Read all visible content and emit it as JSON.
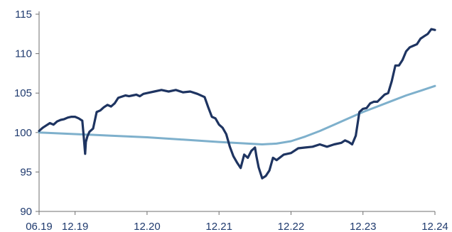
{
  "chart_data": {
    "type": "line",
    "title": "",
    "xlabel": "",
    "ylabel": "",
    "ylim": [
      90,
      115
    ],
    "yticks": [
      90,
      95,
      100,
      105,
      110,
      115
    ],
    "x_tick_labels": [
      "06.19",
      "12.19",
      "12.20",
      "12.21",
      "12.22",
      "12.23",
      "12.24"
    ],
    "x_tick_dates": [
      2019.5,
      2020.0,
      2021.0,
      2022.0,
      2023.0,
      2024.0,
      2025.0
    ],
    "xlim": [
      2019.5,
      2025.0
    ],
    "grid": false,
    "legend": "none",
    "series": [
      {
        "color": "#1e3461",
        "style": "solid",
        "x": [
          2019.5,
          2019.55,
          2019.6,
          2019.65,
          2019.7,
          2019.75,
          2019.8,
          2019.85,
          2019.9,
          2019.95,
          2020.0,
          2020.05,
          2020.1,
          2020.12,
          2020.14,
          2020.15,
          2020.17,
          2020.2,
          2020.25,
          2020.3,
          2020.35,
          2020.4,
          2020.45,
          2020.5,
          2020.55,
          2020.6,
          2020.7,
          2020.75,
          2020.8,
          2020.85,
          2020.9,
          2020.95,
          2021.0,
          2021.1,
          2021.2,
          2021.3,
          2021.4,
          2021.5,
          2021.6,
          2021.7,
          2021.8,
          2021.85,
          2021.9,
          2021.95,
          2022.0,
          2022.05,
          2022.1,
          2022.15,
          2022.2,
          2022.25,
          2022.3,
          2022.35,
          2022.4,
          2022.45,
          2022.5,
          2022.52,
          2022.55,
          2022.6,
          2022.65,
          2022.7,
          2022.75,
          2022.8,
          2022.9,
          2023.0,
          2023.1,
          2023.2,
          2023.3,
          2023.4,
          2023.5,
          2023.6,
          2023.7,
          2023.75,
          2023.8,
          2023.85,
          2023.9,
          2023.95,
          2024.0,
          2024.05,
          2024.1,
          2024.15,
          2024.2,
          2024.3,
          2024.35,
          2024.4,
          2024.45,
          2024.5,
          2024.55,
          2024.6,
          2024.65,
          2024.7,
          2024.75,
          2024.8,
          2024.85,
          2024.9,
          2024.95,
          2025.0
        ],
        "values": [
          100.2,
          100.6,
          100.9,
          101.2,
          101.0,
          101.4,
          101.6,
          101.7,
          101.9,
          102.0,
          102.0,
          101.8,
          101.5,
          99.5,
          97.3,
          98.8,
          99.5,
          100.1,
          100.5,
          102.6,
          102.8,
          103.2,
          103.5,
          103.3,
          103.7,
          104.4,
          104.7,
          104.6,
          104.7,
          104.8,
          104.6,
          104.9,
          105.0,
          105.2,
          105.4,
          105.2,
          105.4,
          105.1,
          105.2,
          104.9,
          104.5,
          103.2,
          102.0,
          101.8,
          101.0,
          100.6,
          99.8,
          98.2,
          97.0,
          96.2,
          95.5,
          97.2,
          96.8,
          97.7,
          98.1,
          97.0,
          95.6,
          94.2,
          94.5,
          95.2,
          96.8,
          96.5,
          97.2,
          97.4,
          98.0,
          98.1,
          98.2,
          98.5,
          98.2,
          98.5,
          98.7,
          99.0,
          98.8,
          98.5,
          99.6,
          102.6,
          103.0,
          103.1,
          103.7,
          103.9,
          103.9,
          104.8,
          105.0,
          106.5,
          108.5,
          108.5,
          109.2,
          110.3,
          110.8,
          111.0,
          111.2,
          111.9,
          112.2,
          112.5,
          113.1,
          113.0
        ]
      },
      {
        "color": "#7eb0cc",
        "style": "solid",
        "x": [
          2019.5,
          2020.0,
          2020.5,
          2021.0,
          2021.5,
          2022.0,
          2022.4,
          2022.6,
          2022.8,
          2023.0,
          2023.2,
          2023.4,
          2023.6,
          2023.8,
          2024.0,
          2024.2,
          2024.4,
          2024.6,
          2024.8,
          2025.0
        ],
        "values": [
          100.0,
          99.8,
          99.6,
          99.4,
          99.1,
          98.8,
          98.6,
          98.5,
          98.6,
          98.9,
          99.5,
          100.2,
          101.0,
          101.8,
          102.6,
          103.3,
          104.0,
          104.7,
          105.3,
          105.9
        ]
      }
    ]
  }
}
